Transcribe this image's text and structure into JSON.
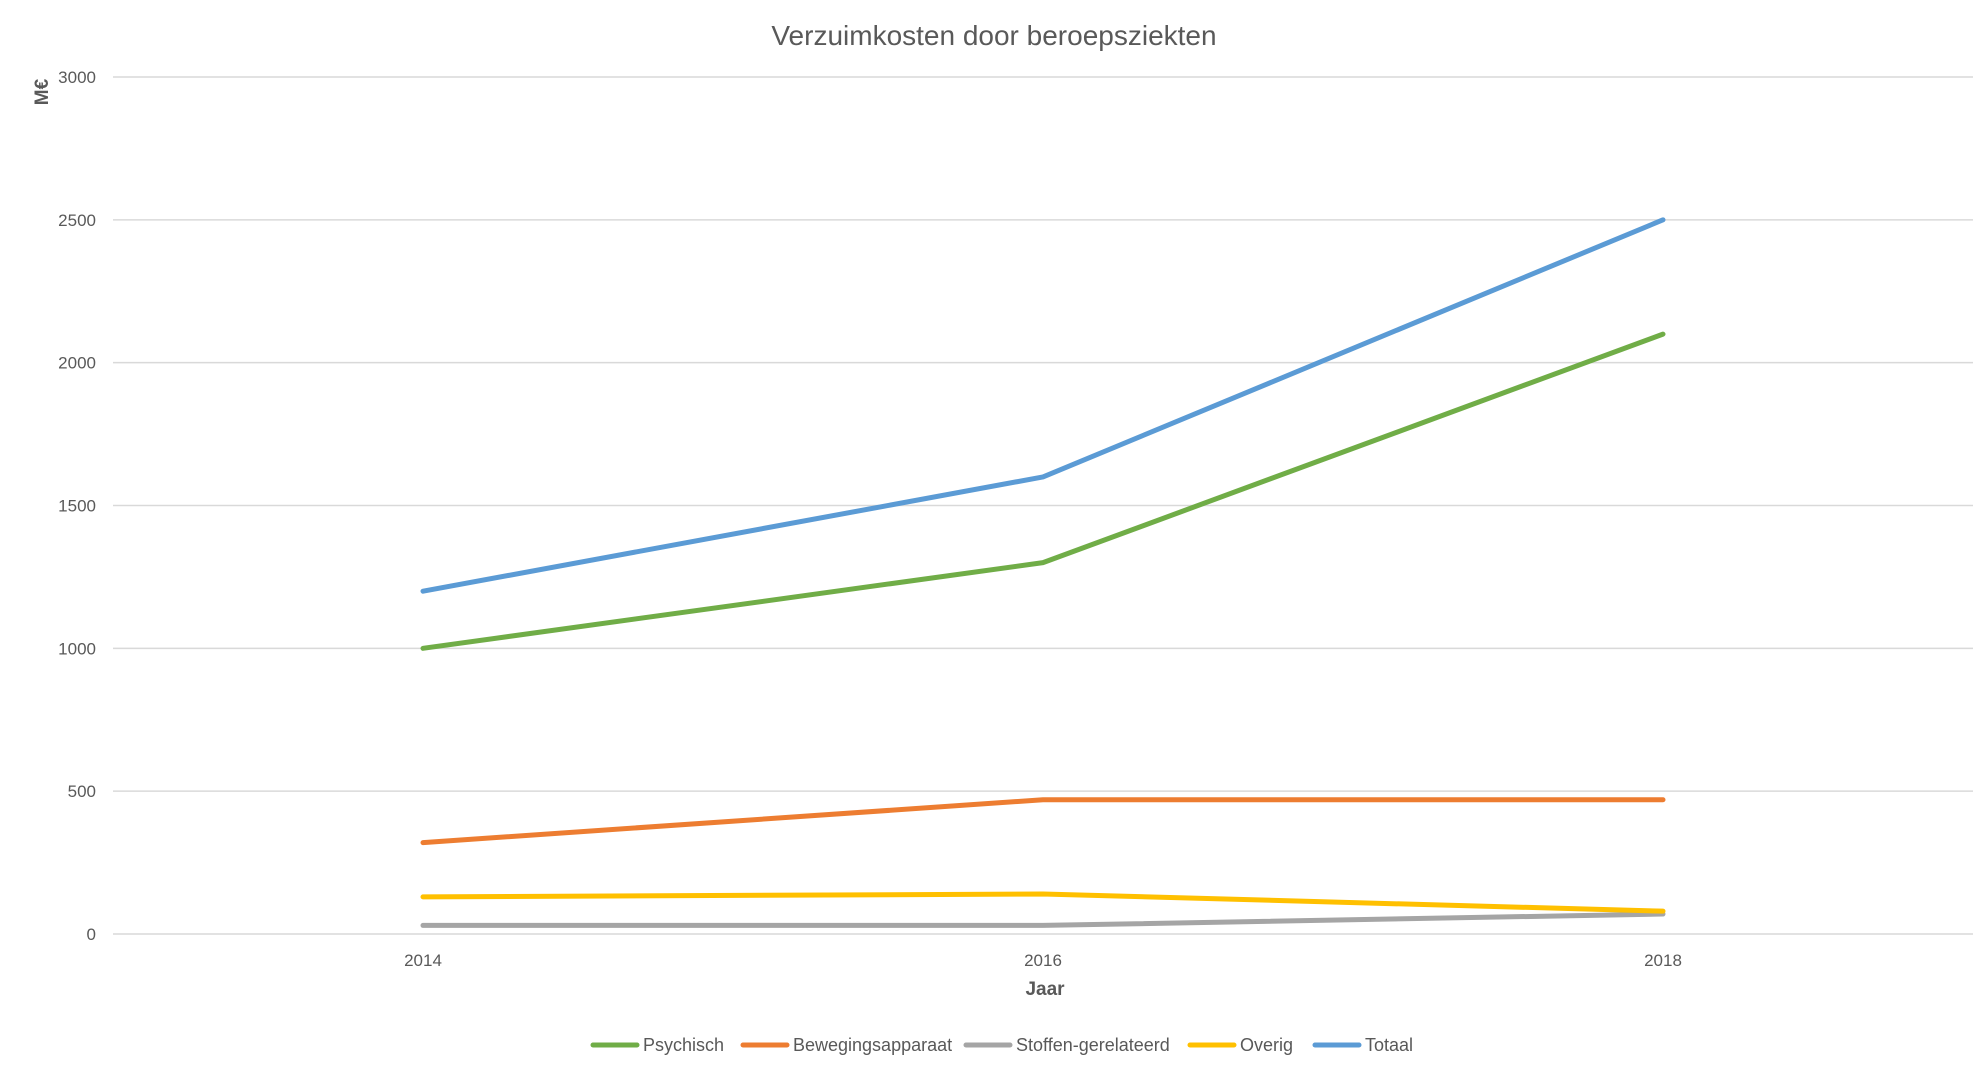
{
  "chart_data": {
    "type": "line",
    "title": "Verzuimkosten door beroepsziekten",
    "xlabel": "Jaar",
    "ylabel": "M€",
    "x": [
      "2014",
      "2016",
      "2018"
    ],
    "ylim": [
      0,
      3000
    ],
    "yticks": [
      0,
      500,
      1000,
      1500,
      2000,
      2500,
      3000
    ],
    "grid": "horizontal",
    "legend_position": "bottom",
    "series": [
      {
        "name": "Psychisch",
        "color": "#70ad47",
        "values": [
          1000,
          1300,
          2100
        ]
      },
      {
        "name": "Bewegingsapparaat",
        "color": "#ed7d31",
        "values": [
          320,
          470,
          470
        ]
      },
      {
        "name": "Stoffen-gerelateerd",
        "color": "#a5a5a5",
        "values": [
          30,
          30,
          70
        ]
      },
      {
        "name": "Overig",
        "color": "#ffc000",
        "values": [
          130,
          140,
          80
        ]
      },
      {
        "name": "Totaal",
        "color": "#5b9bd5",
        "values": [
          1200,
          1600,
          2500
        ]
      }
    ]
  }
}
